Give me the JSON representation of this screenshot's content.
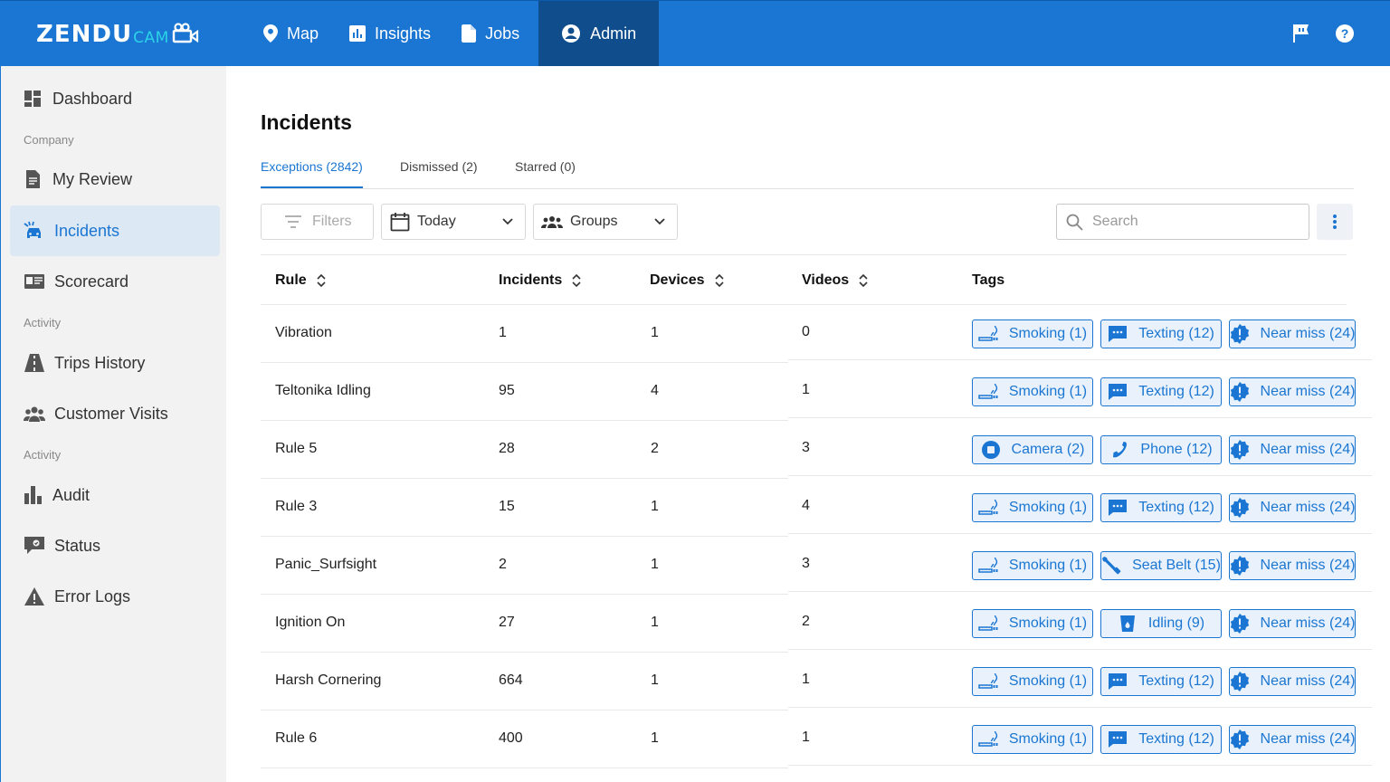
{
  "brand": {
    "logo_main": "ZENDU",
    "logo_sub": "CAM"
  },
  "colors": {
    "primary": "#1a76d2",
    "nav_active": "#0f4d8c",
    "tag_bg": "#e9f2fc",
    "sidebar_bg": "#f2f2f2"
  },
  "topnav": [
    {
      "label": "Map",
      "icon": "map-pin-icon"
    },
    {
      "label": "Insights",
      "icon": "insights-icon"
    },
    {
      "label": "Jobs",
      "icon": "document-icon"
    },
    {
      "label": "Admin",
      "icon": "account-icon",
      "active": true
    }
  ],
  "top_icons": [
    "feedback-flag-icon",
    "help-icon"
  ],
  "sidebar": {
    "dashboard": "Dashboard",
    "section_company": "Company",
    "my_review": "My Review",
    "incidents": "Incidents",
    "scorecard": "Scorecard",
    "section_activity_1": "Activity",
    "trips_history": "Trips History",
    "customer_visits": "Customer Visits",
    "section_activity_2": "Activity",
    "audit": "Audit",
    "status": "Status",
    "error_logs": "Error Logs"
  },
  "page_title": "Incidents",
  "tabs": [
    {
      "label": "Exceptions (2842)",
      "active": true
    },
    {
      "label": "Dismissed (2)"
    },
    {
      "label": "Starred (0)"
    }
  ],
  "toolbar": {
    "filters_label": "Filters",
    "date_value": "Today",
    "groups_value": "Groups",
    "search_placeholder": "Search"
  },
  "table": {
    "columns": [
      "Rule",
      "Incidents",
      "Devices",
      "Videos",
      "Tags"
    ],
    "rows": [
      {
        "rule": "Vibration",
        "incidents": "1",
        "devices": "1",
        "videos": "0",
        "tags": [
          {
            "label": "Smoking (1)",
            "icon": "smoking-icon"
          },
          {
            "label": "Texting (12)",
            "icon": "chat-icon"
          },
          {
            "label": "Near miss (24)",
            "icon": "alert-badge-icon"
          }
        ]
      },
      {
        "rule": "Teltonika Idling",
        "incidents": "95",
        "devices": "4",
        "videos": "1",
        "tags": [
          {
            "label": "Smoking (1)",
            "icon": "smoking-icon"
          },
          {
            "label": "Texting (12)",
            "icon": "chat-icon"
          },
          {
            "label": "Near miss (24)",
            "icon": "alert-badge-icon"
          }
        ]
      },
      {
        "rule": "Rule 5",
        "incidents": "28",
        "devices": "2",
        "videos": "3",
        "tags": [
          {
            "label": "Camera (2)",
            "icon": "camera-stop-icon"
          },
          {
            "label": "Phone (12)",
            "icon": "phone-icon"
          },
          {
            "label": "Near miss (24)",
            "icon": "alert-badge-icon"
          }
        ]
      },
      {
        "rule": "Rule 3",
        "incidents": "15",
        "devices": "1",
        "videos": "4",
        "tags": [
          {
            "label": "Smoking (1)",
            "icon": "smoking-icon"
          },
          {
            "label": "Texting (12)",
            "icon": "chat-icon"
          },
          {
            "label": "Near miss (24)",
            "icon": "alert-badge-icon"
          }
        ]
      },
      {
        "rule": "Panic_Surfsight",
        "incidents": "2",
        "devices": "1",
        "videos": "3",
        "tags": [
          {
            "label": "Smoking (1)",
            "icon": "smoking-icon"
          },
          {
            "label": "Seat Belt (15)",
            "icon": "seatbelt-icon"
          },
          {
            "label": "Near miss (24)",
            "icon": "alert-badge-icon"
          }
        ]
      },
      {
        "rule": "Ignition On",
        "incidents": "27",
        "devices": "1",
        "videos": "2",
        "tags": [
          {
            "label": "Smoking (1)",
            "icon": "smoking-icon"
          },
          {
            "label": "Idling (9)",
            "icon": "fuel-cup-icon"
          },
          {
            "label": "Near miss (24)",
            "icon": "alert-badge-icon"
          }
        ]
      },
      {
        "rule": "Harsh Cornering",
        "incidents": "664",
        "devices": "1",
        "videos": "1",
        "tags": [
          {
            "label": "Smoking (1)",
            "icon": "smoking-icon"
          },
          {
            "label": "Texting (12)",
            "icon": "chat-icon"
          },
          {
            "label": "Near miss (24)",
            "icon": "alert-badge-icon"
          }
        ]
      },
      {
        "rule": "Rule 6",
        "incidents": "400",
        "devices": "1",
        "videos": "1",
        "tags": [
          {
            "label": "Smoking (1)",
            "icon": "smoking-icon"
          },
          {
            "label": "Texting (12)",
            "icon": "chat-icon"
          },
          {
            "label": "Near miss (24)",
            "icon": "alert-badge-icon"
          }
        ]
      }
    ]
  }
}
